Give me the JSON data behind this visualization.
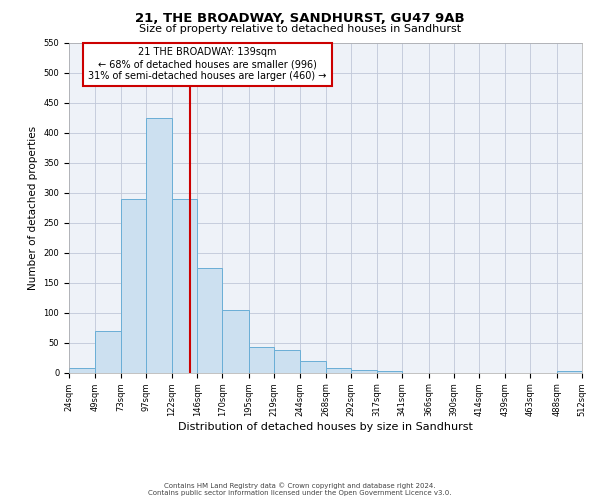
{
  "title": "21, THE BROADWAY, SANDHURST, GU47 9AB",
  "subtitle": "Size of property relative to detached houses in Sandhurst",
  "xlabel": "Distribution of detached houses by size in Sandhurst",
  "ylabel": "Number of detached properties",
  "bin_edges": [
    24,
    49,
    73,
    97,
    122,
    146,
    170,
    195,
    219,
    244,
    268,
    292,
    317,
    341,
    366,
    390,
    414,
    439,
    463,
    488,
    512
  ],
  "counts": [
    8,
    70,
    290,
    425,
    290,
    175,
    105,
    43,
    38,
    20,
    8,
    5,
    2,
    0,
    0,
    0,
    0,
    0,
    0,
    3
  ],
  "bar_color": "#cce0f0",
  "bar_edge_color": "#6aaed6",
  "vline_x": 139,
  "vline_color": "#cc0000",
  "annotation_title": "21 THE BROADWAY: 139sqm",
  "annotation_line1": "← 68% of detached houses are smaller (996)",
  "annotation_line2": "31% of semi-detached houses are larger (460) →",
  "annotation_box_color": "#ffffff",
  "annotation_box_edge": "#cc0000",
  "tick_labels": [
    "24sqm",
    "49sqm",
    "73sqm",
    "97sqm",
    "122sqm",
    "146sqm",
    "170sqm",
    "195sqm",
    "219sqm",
    "244sqm",
    "268sqm",
    "292sqm",
    "317sqm",
    "341sqm",
    "366sqm",
    "390sqm",
    "414sqm",
    "439sqm",
    "463sqm",
    "488sqm",
    "512sqm"
  ],
  "ylim": [
    0,
    550
  ],
  "yticks": [
    0,
    50,
    100,
    150,
    200,
    250,
    300,
    350,
    400,
    450,
    500,
    550
  ],
  "footer1": "Contains HM Land Registry data © Crown copyright and database right 2024.",
  "footer2": "Contains public sector information licensed under the Open Government Licence v3.0.",
  "background_color": "#ffffff",
  "plot_bg_color": "#eef2f8",
  "grid_color": "#c0c8d8",
  "title_fontsize": 9.5,
  "subtitle_fontsize": 8,
  "ylabel_fontsize": 7.5,
  "xlabel_fontsize": 8,
  "tick_fontsize": 6,
  "annotation_fontsize": 7,
  "footer_fontsize": 5
}
